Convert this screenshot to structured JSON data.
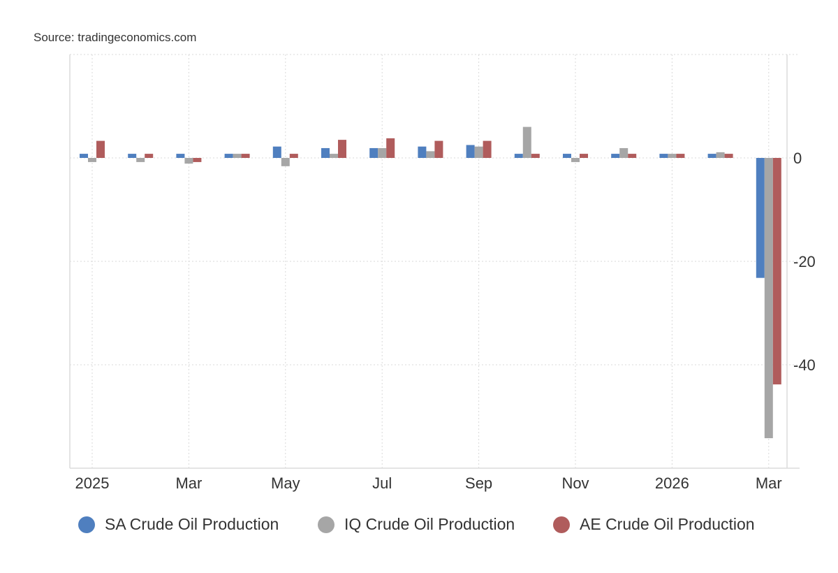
{
  "source": "Source: tradingeconomics.com",
  "chart_data": {
    "type": "bar",
    "categories": [
      "Jan 2025",
      "Feb 2025",
      "Mar 2025",
      "Apr 2025",
      "May 2025",
      "Jun 2025",
      "Jul 2025",
      "Aug 2025",
      "Sep 2025",
      "Oct 2025",
      "Nov 2025",
      "Dec 2025",
      "Jan 2026",
      "Feb 2026",
      "Mar 2026"
    ],
    "x_tick_labels": [
      "2025",
      "Mar",
      "May",
      "Jul",
      "Sep",
      "Nov",
      "2026",
      "Mar"
    ],
    "y_tick_labels": [
      "0",
      "-20",
      "-40"
    ],
    "ylim": [
      -60,
      20
    ],
    "grid": true,
    "legend_position": "bottom",
    "series": [
      {
        "name": "SA Crude Oil Production",
        "color": "#4f7fbf",
        "values": [
          0.8,
          0.8,
          0.8,
          0.8,
          2.2,
          1.9,
          1.9,
          2.2,
          2.5,
          0.8,
          0.8,
          0.8,
          0.8,
          0.8,
          -23.2
        ]
      },
      {
        "name": "IQ Crude Oil Production",
        "color": "#a6a6a6",
        "values": [
          -0.8,
          -0.8,
          -1.1,
          0.8,
          -1.6,
          0.8,
          1.9,
          1.3,
          2.2,
          6.0,
          -0.8,
          1.9,
          0.8,
          1.1,
          -54.2
        ]
      },
      {
        "name": "AE Crude Oil Production",
        "color": "#b05c5c",
        "values": [
          3.3,
          0.8,
          -0.8,
          0.8,
          0.8,
          3.5,
          3.8,
          3.3,
          3.3,
          0.8,
          0.8,
          0.8,
          0.8,
          0.8,
          -43.8
        ]
      }
    ]
  }
}
